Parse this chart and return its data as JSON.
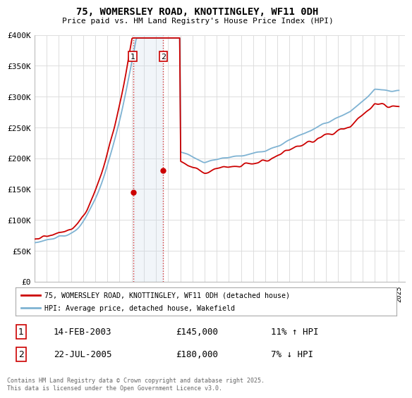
{
  "title": "75, WOMERSLEY ROAD, KNOTTINGLEY, WF11 0DH",
  "subtitle": "Price paid vs. HM Land Registry's House Price Index (HPI)",
  "ylim": [
    0,
    400000
  ],
  "yticks": [
    0,
    50000,
    100000,
    150000,
    200000,
    250000,
    300000,
    350000,
    400000
  ],
  "ytick_labels": [
    "£0",
    "£50K",
    "£100K",
    "£150K",
    "£200K",
    "£250K",
    "£300K",
    "£350K",
    "£400K"
  ],
  "legend_line1": "75, WOMERSLEY ROAD, KNOTTINGLEY, WF11 0DH (detached house)",
  "legend_line2": "HPI: Average price, detached house, Wakefield",
  "sale1_date": "14-FEB-2003",
  "sale1_price": 145000,
  "sale1_pct": "11% ↑ HPI",
  "sale1_year": 2003.12,
  "sale2_date": "22-JUL-2005",
  "sale2_price": 180000,
  "sale2_pct": "7% ↓ HPI",
  "sale2_year": 2005.55,
  "red_color": "#cc0000",
  "blue_color": "#7fb3d3",
  "shade_color": "#c8d8e8",
  "footer": "Contains HM Land Registry data © Crown copyright and database right 2025.\nThis data is licensed under the Open Government Licence v3.0.",
  "background_color": "#ffffff",
  "grid_color": "#dddddd",
  "xlim_start": 1995,
  "xlim_end": 2025.5
}
